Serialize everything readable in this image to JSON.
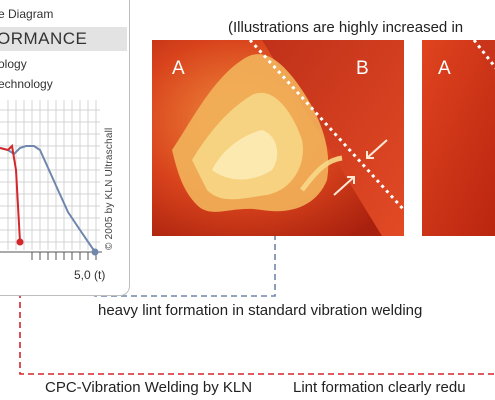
{
  "diagram": {
    "title": "e Diagram",
    "heading": "ORMANCE",
    "legend": [
      "ology",
      "echnology"
    ],
    "x_tick_label": "5,0 (t)",
    "copyright": "© 2005 by KLN Ultraschall",
    "colors": {
      "red_curve": "#d4262b",
      "blue_curve": "#6f86ad",
      "grid": "#bdbdbd"
    }
  },
  "illustration_note": "(Illustrations are highly increased in",
  "photos": [
    {
      "labels": [
        "A",
        "B"
      ]
    },
    {
      "labels": [
        "A"
      ]
    }
  ],
  "captions": {
    "standard": "heavy lint formation in standard vibration welding",
    "cpc": "CPC-Vibration Welding by KLN",
    "cpc_result": "Lint formation clearly redu"
  }
}
